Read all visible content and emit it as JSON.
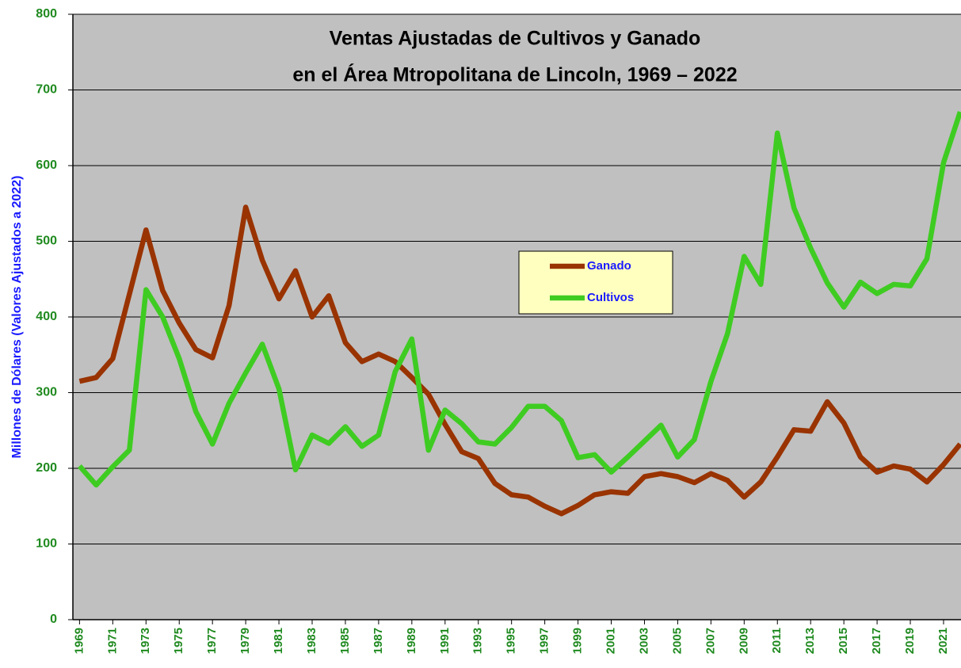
{
  "chart_data": {
    "type": "line",
    "title": [
      "Ventas Ajustadas de Cultivos y Ganado",
      "en el Área Mtropolitana de Lincoln, 1969 – 2022"
    ],
    "y_label": "Millones de Dólares (Valores Ajustados a 2022)",
    "x": [
      1969,
      1970,
      1971,
      1972,
      1973,
      1974,
      1975,
      1976,
      1977,
      1978,
      1979,
      1980,
      1981,
      1982,
      1983,
      1984,
      1985,
      1986,
      1987,
      1988,
      1989,
      1990,
      1991,
      1992,
      1993,
      1994,
      1995,
      1996,
      1997,
      1998,
      1999,
      2000,
      2001,
      2002,
      2003,
      2004,
      2005,
      2006,
      2007,
      2008,
      2009,
      2010,
      2011,
      2012,
      2013,
      2014,
      2015,
      2016,
      2017,
      2018,
      2019,
      2020,
      2021,
      2022
    ],
    "series": [
      {
        "name": "Ganado",
        "color": "#993300",
        "values": [
          315,
          320,
          345,
          430,
          515,
          435,
          392,
          357,
          346,
          415,
          545,
          475,
          424,
          461,
          400,
          428,
          366,
          341,
          351,
          341,
          320,
          298,
          258,
          222,
          213,
          180,
          165,
          162,
          150,
          140,
          151,
          165,
          169,
          167,
          189,
          193,
          189,
          181,
          193,
          184,
          162,
          182,
          215,
          251,
          249,
          288,
          260,
          215,
          195,
          203,
          199,
          182,
          205,
          232
        ]
      },
      {
        "name": "Cultivos",
        "color": "#3fcc22",
        "values": [
          203,
          178,
          202,
          224,
          436,
          400,
          345,
          275,
          232,
          286,
          326,
          364,
          305,
          198,
          244,
          233,
          255,
          229,
          244,
          328,
          371,
          224,
          277,
          259,
          235,
          232,
          254,
          282,
          282,
          263,
          214,
          218,
          195,
          215,
          236,
          257,
          215,
          238,
          315,
          378,
          480,
          443,
          643,
          544,
          491,
          445,
          413,
          446,
          431,
          443,
          441,
          477,
          604,
          671
        ]
      }
    ],
    "xlim": [
      1968.6,
      2022.05
    ],
    "xticks": [
      1969,
      1971,
      1973,
      1975,
      1977,
      1979,
      1981,
      1983,
      1985,
      1987,
      1989,
      1991,
      1993,
      1995,
      1997,
      1999,
      2001,
      2003,
      2005,
      2007,
      2009,
      2011,
      2013,
      2015,
      2017,
      2019,
      2021
    ],
    "ylim": [
      0,
      800
    ],
    "yticks": [
      0,
      100,
      200,
      300,
      400,
      500,
      600,
      700,
      800
    ],
    "grid": true
  }
}
